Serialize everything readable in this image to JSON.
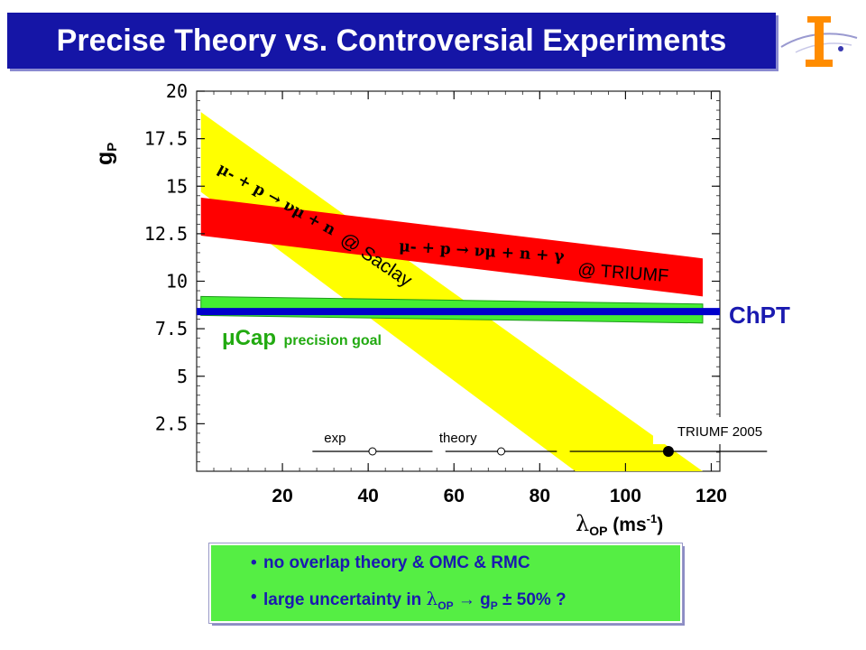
{
  "title": "Precise Theory vs. Controversial Experiments",
  "colors": {
    "title_bg": "#1515a6",
    "yellow_band": "#ffff00",
    "red_band": "#ff0000",
    "green_band": "#44ee33",
    "chpt_line": "#0000cc",
    "text_blue": "#1a1ab0"
  },
  "logo": {
    "icon": "institute-logo-icon"
  },
  "chart_data": {
    "type": "area",
    "xlabel": "λOP (ms-1)",
    "xlabel_parts": {
      "symbol": "λ",
      "sub": "OP",
      "unit": " (ms",
      "sup": "-1",
      "close": ")"
    },
    "ylabel": "gP",
    "ylabel_parts": {
      "main": "g",
      "sub": "P"
    },
    "xlim": [
      0,
      122
    ],
    "ylim": [
      0,
      20
    ],
    "xticks": [
      20,
      40,
      60,
      80,
      100,
      120
    ],
    "yticks": [
      2.5,
      5,
      7.5,
      10,
      12.5,
      15,
      17.5,
      20
    ],
    "ytick_labels": [
      "2.5",
      "5",
      "7.5",
      "10",
      "12.5",
      "15",
      "17.5",
      "20"
    ],
    "bands": [
      {
        "name": "saclay",
        "polygon": [
          [
            1,
            18.9
          ],
          [
            118,
            0
          ],
          [
            118,
            -5
          ],
          [
            1,
            14.7
          ]
        ]
      },
      {
        "name": "triumf",
        "polygon": [
          [
            1,
            14.4
          ],
          [
            118,
            11.2
          ],
          [
            118,
            9.2
          ],
          [
            1,
            12.4
          ]
        ]
      },
      {
        "name": "mucap",
        "polygon": [
          [
            1,
            9.2
          ],
          [
            118,
            8.8
          ],
          [
            118,
            7.8
          ],
          [
            1,
            8.2
          ]
        ]
      }
    ],
    "chpt": {
      "y": 8.4,
      "x_from": 0,
      "x_to": 122
    },
    "band_labels": {
      "saclay_reaction": "μ- + p → νμ + n",
      "saclay_suffix": "@ Saclay",
      "triumf_reaction": "μ- + p → νμ + n + γ",
      "triumf_suffix": "@ TRIUMF",
      "chpt": "ChPT",
      "mucap": "μCap",
      "mucap_note": "precision goal"
    },
    "error_bars": [
      {
        "label": "exp",
        "center": 41,
        "low": 27,
        "high": 55,
        "filled": false
      },
      {
        "label": "theory",
        "center": 71,
        "low": 58,
        "high": 84,
        "filled": false
      },
      {
        "label": "TRIUMF 2005",
        "center": 110,
        "low": 87,
        "high": 133,
        "filled": true
      }
    ]
  },
  "bullets": [
    {
      "text": "no overlap theory & OMC & RMC"
    },
    {
      "pre": "large uncertainty in ",
      "sym": "λ",
      "sub": "OP",
      "arrow": " → g",
      "sub2": "P",
      "pm": " ± 50% ?"
    }
  ]
}
